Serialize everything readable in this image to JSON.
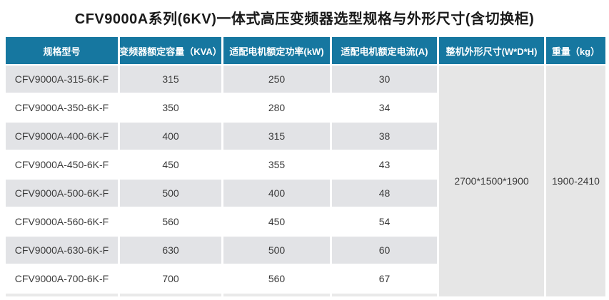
{
  "title": "CFV9000A系列(6KV)一体式高压变频器选型规格与外形尺寸(含切换柜)",
  "colors": {
    "header_bg": "#1677a0",
    "header_text": "#ffffff",
    "stripe_row_bg": "#e2e3e6",
    "merged_cell_bg": "#e6e6e6",
    "body_text": "#3b3b3b"
  },
  "table": {
    "headers": [
      "规格型号",
      "变频器额定容量（KVA）",
      "适配电机额定功率(kW)",
      "适配电机额定电流(A)",
      "整机外形尺寸(W*D*H)",
      "重量（kg）"
    ],
    "rows": [
      {
        "model": "CFV9000A-315-6K-F",
        "capacity": "315",
        "power": "250",
        "current": "30"
      },
      {
        "model": "CFV9000A-350-6K-F",
        "capacity": "350",
        "power": "280",
        "current": "34"
      },
      {
        "model": "CFV9000A-400-6K-F",
        "capacity": "400",
        "power": "315",
        "current": "38"
      },
      {
        "model": "CFV9000A-450-6K-F",
        "capacity": "450",
        "power": "355",
        "current": "43"
      },
      {
        "model": "CFV9000A-500-6K-F",
        "capacity": "500",
        "power": "400",
        "current": "48"
      },
      {
        "model": "CFV9000A-560-6K-F",
        "capacity": "560",
        "power": "450",
        "current": "54"
      },
      {
        "model": "CFV9000A-630-6K-F",
        "capacity": "630",
        "power": "500",
        "current": "60"
      },
      {
        "model": "CFV9000A-700-6K-F",
        "capacity": "700",
        "power": "560",
        "current": "67"
      }
    ],
    "dimensions_value": "2700*1500*1900",
    "weight_value": "1900-2410"
  },
  "chart_data": {
    "type": "table",
    "title": "CFV9000A系列(6KV)一体式高压变频器选型规格与外形尺寸(含切换柜)",
    "columns": [
      "规格型号",
      "变频器额定容量（KVA）",
      "适配电机额定功率(kW)",
      "适配电机额定电流(A)",
      "整机外形尺寸(W*D*H)",
      "重量（kg）"
    ],
    "rows": [
      [
        "CFV9000A-315-6K-F",
        315,
        250,
        30,
        "2700*1500*1900",
        "1900-2410"
      ],
      [
        "CFV9000A-350-6K-F",
        350,
        280,
        34,
        "2700*1500*1900",
        "1900-2410"
      ],
      [
        "CFV9000A-400-6K-F",
        400,
        315,
        38,
        "2700*1500*1900",
        "1900-2410"
      ],
      [
        "CFV9000A-450-6K-F",
        450,
        355,
        43,
        "2700*1500*1900",
        "1900-2410"
      ],
      [
        "CFV9000A-500-6K-F",
        500,
        400,
        48,
        "2700*1500*1900",
        "1900-2410"
      ],
      [
        "CFV9000A-560-6K-F",
        560,
        450,
        54,
        "2700*1500*1900",
        "1900-2410"
      ],
      [
        "CFV9000A-630-6K-F",
        630,
        500,
        60,
        "2700*1500*1900",
        "1900-2410"
      ],
      [
        "CFV9000A-700-6K-F",
        700,
        560,
        67,
        "2700*1500*1900",
        "1900-2410"
      ]
    ],
    "notes": "整机外形尺寸 and 重量 are merged cells spanning all 8 model rows"
  }
}
